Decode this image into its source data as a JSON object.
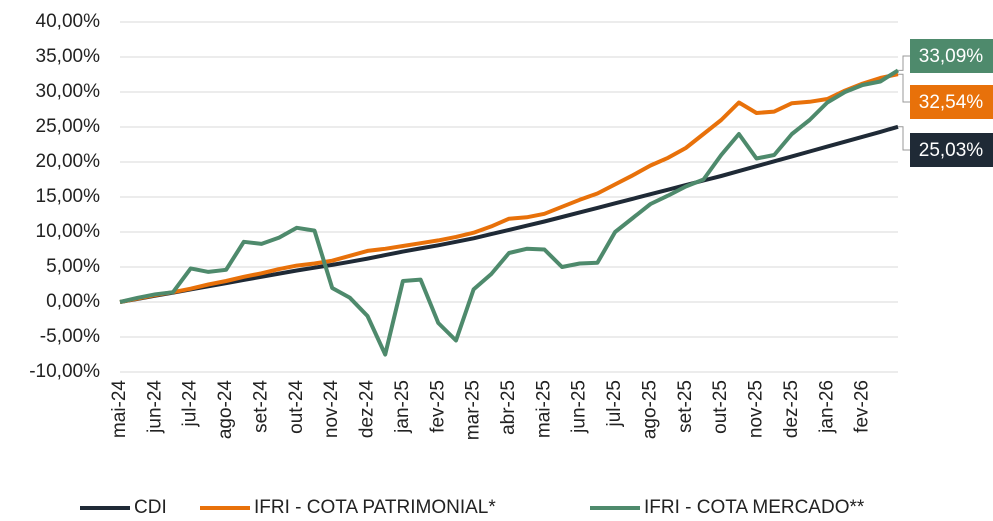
{
  "chart_data": {
    "type": "line",
    "categories": [
      "mai-24",
      null,
      "jun-24",
      null,
      "jul-24",
      null,
      "ago-24",
      null,
      "set-24",
      null,
      "out-24",
      null,
      "nov-24",
      null,
      "dez-24",
      null,
      "jan-25",
      null,
      "fev-25",
      null,
      "mar-25",
      null,
      "abr-25",
      null,
      "mai-25",
      null,
      "jun-25",
      null,
      "jul-25",
      null,
      "ago-25",
      null,
      "set-25",
      null,
      "out-25",
      null,
      "nov-25",
      null,
      "dez-25",
      null,
      "jan-26",
      null,
      "fev-26",
      null,
      null
    ],
    "series": [
      {
        "name": "CDI",
        "color": "#1f2a36",
        "values": [
          0,
          0.45,
          0.9,
          1.35,
          1.8,
          2.25,
          2.7,
          3.15,
          3.6,
          4.05,
          4.5,
          4.9,
          5.3,
          5.75,
          6.2,
          6.7,
          7.2,
          7.65,
          8.1,
          8.6,
          9.1,
          9.7,
          10.3,
          10.9,
          11.5,
          12.15,
          12.8,
          13.45,
          14.1,
          14.75,
          15.4,
          16.05,
          16.7,
          17.35,
          18.0,
          18.7,
          19.4,
          20.1,
          20.8,
          21.5,
          22.2,
          22.9,
          23.6,
          24.3,
          25.03
        ],
        "value_labels": [
          null,
          null,
          null,
          null,
          null,
          null,
          null,
          null,
          null,
          null,
          null,
          null,
          null,
          null,
          null,
          null,
          null,
          null,
          null,
          null,
          null,
          null,
          null,
          null,
          null,
          null,
          null,
          null,
          null,
          null,
          null,
          null,
          null,
          null,
          null,
          null,
          null,
          null,
          null,
          null,
          null,
          null,
          null,
          null,
          "25,03%"
        ]
      },
      {
        "name": "IFRI - COTA PATRIMONIAL*",
        "color": "#e8710a",
        "values": [
          0,
          0.5,
          1.0,
          1.4,
          1.9,
          2.5,
          3.0,
          3.6,
          4.1,
          4.7,
          5.2,
          5.5,
          5.9,
          6.6,
          7.3,
          7.6,
          8.0,
          8.4,
          8.8,
          9.3,
          9.9,
          10.8,
          11.9,
          12.1,
          12.6,
          13.6,
          14.6,
          15.5,
          16.8,
          18.1,
          19.5,
          20.6,
          22.0,
          24.0,
          26.0,
          28.5,
          27.0,
          27.2,
          28.4,
          28.6,
          29.0,
          30.2,
          31.2,
          32.0,
          32.54
        ],
        "value_labels": [
          null,
          null,
          null,
          null,
          null,
          null,
          null,
          null,
          null,
          null,
          null,
          null,
          null,
          null,
          null,
          null,
          null,
          null,
          null,
          null,
          null,
          null,
          null,
          null,
          null,
          null,
          null,
          null,
          null,
          null,
          null,
          null,
          null,
          null,
          null,
          null,
          null,
          null,
          null,
          null,
          null,
          null,
          null,
          null,
          "32,54%"
        ]
      },
      {
        "name": "IFRI - COTA MERCADO**",
        "color": "#4e8a6c",
        "values": [
          0,
          0.6,
          1.1,
          1.4,
          4.8,
          4.3,
          4.6,
          8.6,
          8.3,
          9.2,
          10.6,
          10.2,
          2.0,
          0.6,
          -2.0,
          -7.5,
          3.0,
          3.2,
          -3.0,
          -5.5,
          1.8,
          4.0,
          7.0,
          7.6,
          7.5,
          5.0,
          5.5,
          5.6,
          10.0,
          12.0,
          14.0,
          15.2,
          16.5,
          17.5,
          21.0,
          24.0,
          20.5,
          21.0,
          24.0,
          26.0,
          28.5,
          30.0,
          31.0,
          31.5,
          33.09
        ],
        "value_labels": [
          null,
          null,
          null,
          null,
          null,
          null,
          null,
          null,
          null,
          null,
          null,
          null,
          null,
          null,
          null,
          null,
          null,
          null,
          null,
          null,
          null,
          null,
          null,
          null,
          null,
          null,
          null,
          null,
          null,
          null,
          null,
          null,
          null,
          null,
          null,
          null,
          null,
          null,
          null,
          null,
          null,
          null,
          null,
          null,
          "33,09%"
        ]
      }
    ],
    "ylim": [
      -10,
      40
    ],
    "yticks": [
      {
        "value": -10,
        "label": "-10,00%"
      },
      {
        "value": -5,
        "label": "-5,00%"
      },
      {
        "value": 0,
        "label": "0,00%"
      },
      {
        "value": 5,
        "label": "5,00%"
      },
      {
        "value": 10,
        "label": "10,00%"
      },
      {
        "value": 15,
        "label": "15,00%"
      },
      {
        "value": 20,
        "label": "20,00%"
      },
      {
        "value": 25,
        "label": "25,00%"
      },
      {
        "value": 30,
        "label": "30,00%"
      },
      {
        "value": 35,
        "label": "35,00%"
      },
      {
        "value": 40,
        "label": "40,00%"
      }
    ],
    "grid": true,
    "legend": "bottom"
  }
}
